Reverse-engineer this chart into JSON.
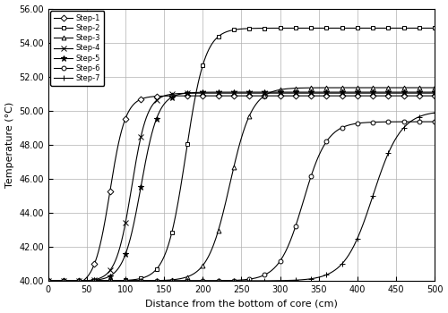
{
  "xlabel": "Distance from the bottom of core (cm)",
  "ylabel": "Temperature (°C)",
  "xlim": [
    0,
    500
  ],
  "ylim": [
    40.0,
    56.0
  ],
  "yticks": [
    40.0,
    42.0,
    44.0,
    46.0,
    48.0,
    50.0,
    52.0,
    54.0,
    56.0
  ],
  "xticks": [
    0,
    50,
    100,
    150,
    200,
    250,
    300,
    350,
    400,
    450,
    500
  ],
  "steps": [
    {
      "label": "Step-1",
      "marker": "D",
      "T_max": 51.2,
      "x_inflect": 80,
      "k": 0.1,
      "x_start": 45
    },
    {
      "label": "Step-2",
      "marker": "s",
      "T_max": 54.85,
      "x_inflect": 178,
      "k": 0.08,
      "x_start": 45
    },
    {
      "label": "Step-3",
      "marker": "^",
      "T_max": 51.35,
      "x_inflect": 235,
      "k": 0.07,
      "x_start": 45
    },
    {
      "label": "Step-4",
      "marker": "x",
      "T_max": 51.05,
      "x_inflect": 108,
      "k": 0.1,
      "x_start": 45
    },
    {
      "label": "Step-5",
      "marker": "*",
      "T_max": 51.1,
      "x_inflect": 120,
      "k": 0.09,
      "x_start": 45
    },
    {
      "label": "Step-6",
      "marker": "o",
      "T_max": 49.35,
      "x_inflect": 330,
      "k": 0.065,
      "x_start": 45
    },
    {
      "label": "Step-7",
      "marker": "+",
      "T_max": 50.0,
      "x_inflect": 420,
      "k": 0.055,
      "x_start": 45
    }
  ],
  "marker_sizes": {
    "D": 3.5,
    "s": 3.5,
    "^": 3.5,
    "x": 4,
    "*": 5,
    "o": 3.5,
    "+": 4
  },
  "markevery_n": 20,
  "line_color": "#000000",
  "background_color": "#ffffff",
  "grid_color": "#b0b0b0"
}
